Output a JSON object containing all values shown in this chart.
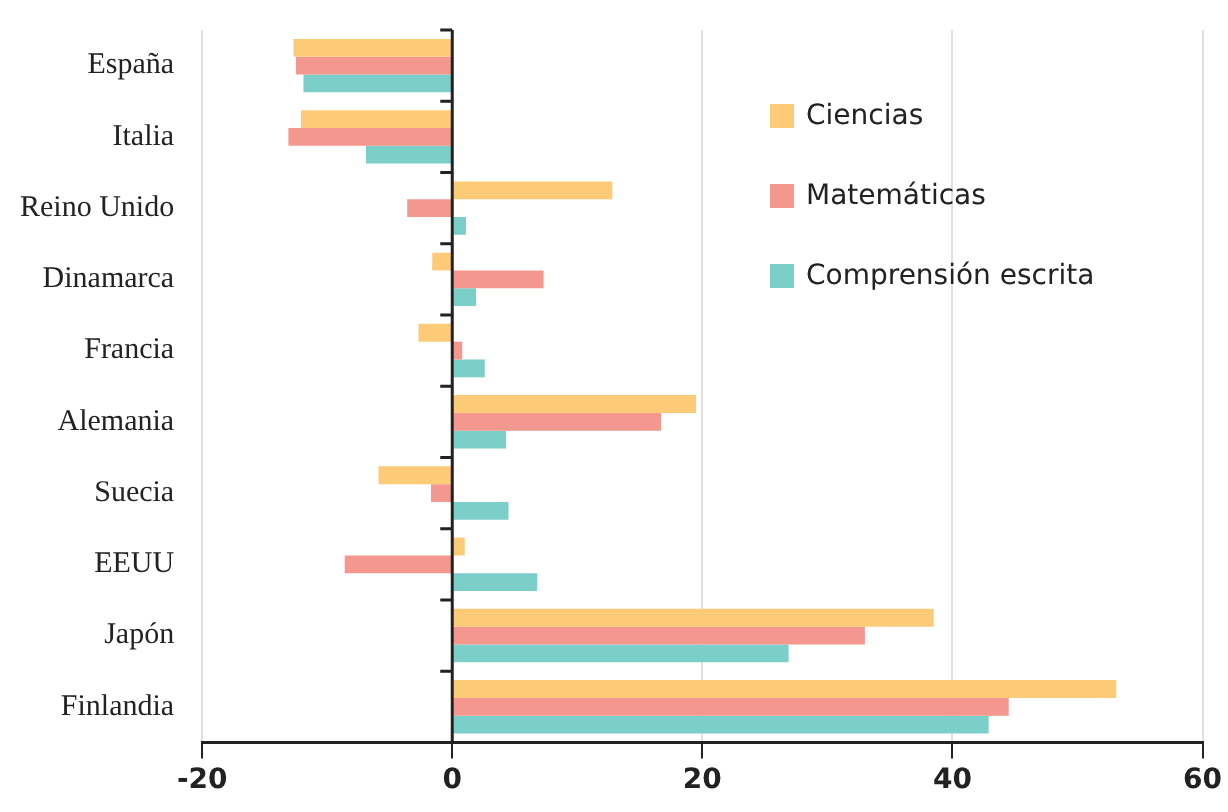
{
  "chart_data": {
    "type": "bar",
    "orientation": "horizontal",
    "categories": [
      "España",
      "Italia",
      "Reino Unido",
      "Dinamarca",
      "Francia",
      "Alemania",
      "Suecia",
      "EEUU",
      "Japón",
      "Finlandia"
    ],
    "series": [
      {
        "name": "Ciencias",
        "color": "#fdcb78",
        "values": [
          -12.7,
          -12.1,
          12.8,
          -1.6,
          -2.7,
          19.5,
          -5.9,
          1.0,
          38.5,
          53.1
        ]
      },
      {
        "name": "Matemáticas",
        "color": "#f4978e",
        "values": [
          -12.5,
          -13.1,
          -3.6,
          7.3,
          0.8,
          16.7,
          -1.7,
          -8.6,
          33.0,
          44.5
        ]
      },
      {
        "name": "Comprensión escrita",
        "color": "#7ccec8",
        "values": [
          -11.9,
          -6.9,
          1.1,
          1.9,
          2.6,
          4.3,
          4.5,
          6.8,
          26.9,
          42.9
        ]
      }
    ],
    "xlim": [
      -20,
      60
    ],
    "xticks": [
      -20,
      0,
      20,
      40,
      60
    ],
    "grid": "x",
    "legend": "top right"
  }
}
